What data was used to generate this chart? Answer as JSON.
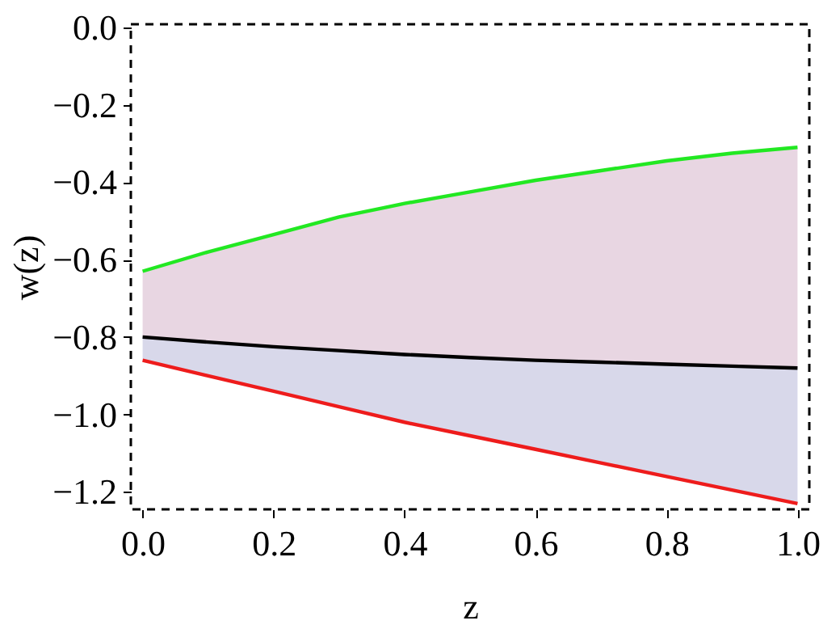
{
  "chart_data": {
    "type": "line",
    "xlabel": "z",
    "ylabel": "w(z)",
    "x": [
      0,
      0.1,
      0.2,
      0.3,
      0.4,
      0.5,
      0.6,
      0.7,
      0.8,
      0.9,
      1.0
    ],
    "series": [
      {
        "color": "#22e822",
        "values": [
          -0.63,
          -0.58,
          -0.535,
          -0.49,
          -0.455,
          -0.425,
          -0.395,
          -0.37,
          -0.345,
          -0.325,
          -0.31
        ],
        "lower": [
          -0.8,
          -0.813,
          -0.825,
          -0.835,
          -0.845,
          -0.853,
          -0.86,
          -0.865,
          -0.87,
          -0.875,
          -0.88
        ],
        "upper": [
          -0.63,
          -0.58,
          -0.535,
          -0.49,
          -0.455,
          -0.425,
          -0.395,
          -0.37,
          -0.345,
          -0.325,
          -0.31
        ]
      },
      {
        "color": "#000000",
        "values": [
          -0.8,
          -0.813,
          -0.825,
          -0.835,
          -0.845,
          -0.853,
          -0.86,
          -0.865,
          -0.87,
          -0.875,
          -0.88
        ]
      },
      {
        "color": "#ee1c1c",
        "values": [
          -0.86,
          -0.9,
          -0.94,
          -0.98,
          -1.02,
          -1.055,
          -1.09,
          -1.125,
          -1.16,
          -1.195,
          -1.23
        ],
        "lower": [
          -0.86,
          -0.9,
          -0.94,
          -0.98,
          -1.02,
          -1.055,
          -1.09,
          -1.125,
          -1.16,
          -1.195,
          -1.23
        ],
        "upper": [
          -0.8,
          -0.813,
          -0.825,
          -0.835,
          -0.845,
          -0.853,
          -0.86,
          -0.865,
          -0.87,
          -0.875,
          -0.88
        ]
      }
    ],
    "xlim": [
      -0.018,
      1.018
    ],
    "ylim": [
      -1.245,
      0.008
    ],
    "xticks": [
      {
        "value": 0,
        "label": "0.0"
      },
      0.2,
      0.4,
      0.6,
      0.8,
      {
        "value": 1,
        "label": "1.0"
      }
    ],
    "yticks": [
      {
        "value": 0,
        "label": "0.0"
      },
      {
        "value": -0.2,
        "label": "−0.2"
      },
      {
        "value": -0.4,
        "label": "−0.4"
      },
      {
        "value": -0.6,
        "label": "−0.6"
      },
      {
        "value": -0.8,
        "label": "−0.8"
      },
      {
        "value": -1,
        "label": "−1.0"
      },
      {
        "value": -1.2,
        "label": "−1.2"
      }
    ],
    "grid": false,
    "marker": "none",
    "line_style": "solid"
  }
}
